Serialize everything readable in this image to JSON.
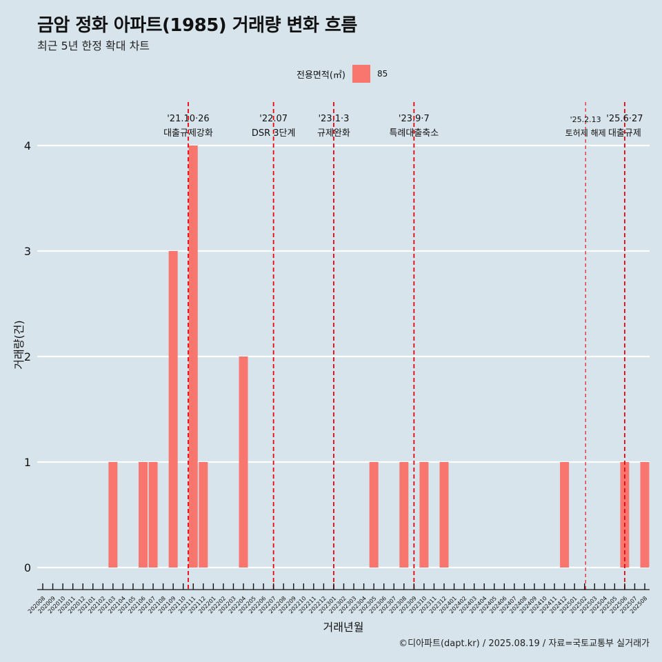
{
  "title": "금암 정화 아파트(1985) 거래량 변화 흐름",
  "subtitle": "최근 5년 한정 확대 차트",
  "caption": "©디아파트(dapt.kr) / 2025.08.19 / 자료=국토교통부 실거래가",
  "colors": {
    "background": "#d7e4ec",
    "bar": "#f8766d",
    "grid": "#ffffff",
    "event_line": "#e8000b"
  },
  "chart_data": {
    "type": "bar",
    "title": "금암 정화 아파트(1985) 거래량 변화 흐름",
    "subtitle": "최근 5년 한정 확대 차트",
    "xlabel": "거래년월",
    "ylabel": "거래량(건)",
    "ylim": [
      0,
      4
    ],
    "yticks": [
      0,
      1,
      2,
      3,
      4
    ],
    "grid": "horizontal major lines",
    "legend": {
      "title": "전용면적(㎡)",
      "placement": "top",
      "entries": [
        "85"
      ]
    },
    "categories": [
      "202008",
      "202009",
      "202010",
      "202011",
      "202012",
      "202101",
      "202102",
      "202103",
      "202104",
      "202105",
      "202106",
      "202107",
      "202108",
      "202109",
      "202110",
      "202111",
      "202112",
      "202201",
      "202202",
      "202203",
      "202204",
      "202205",
      "202206",
      "202207",
      "202208",
      "202209",
      "202210",
      "202211",
      "202212",
      "202301",
      "202302",
      "202303",
      "202304",
      "202305",
      "202306",
      "202307",
      "202308",
      "202309",
      "202310",
      "202311",
      "202312",
      "202401",
      "202402",
      "202403",
      "202404",
      "202405",
      "202406",
      "202407",
      "202408",
      "202409",
      "202410",
      "202411",
      "202412",
      "202501",
      "202502",
      "202503",
      "202504",
      "202505",
      "202506",
      "202507",
      "202508"
    ],
    "series": [
      {
        "name": "85",
        "values": [
          0,
          0,
          0,
          0,
          0,
          0,
          0,
          1,
          0,
          0,
          1,
          1,
          0,
          3,
          0,
          4,
          1,
          0,
          0,
          0,
          2,
          0,
          0,
          0,
          0,
          0,
          0,
          0,
          0,
          0,
          0,
          0,
          0,
          1,
          0,
          0,
          1,
          0,
          1,
          0,
          1,
          0,
          0,
          0,
          0,
          0,
          0,
          0,
          0,
          0,
          0,
          0,
          1,
          0,
          0,
          0,
          0,
          0,
          1,
          0,
          1
        ]
      }
    ],
    "events": [
      {
        "date_label": "'21.10·26",
        "text": "대출규제강화",
        "category": "202110",
        "offset": 0.5,
        "style": "bold"
      },
      {
        "date_label": "'22.07",
        "text": "DSR 3단계",
        "category": "202207",
        "offset": 0,
        "style": "bold"
      },
      {
        "date_label": "'23.1·3",
        "text": "규제완화",
        "category": "202301",
        "offset": 0,
        "style": "bold"
      },
      {
        "date_label": "'23.9·7",
        "text": "특례대출축소",
        "category": "202309",
        "offset": 0,
        "style": "bold"
      },
      {
        "date_label": "'25.2.13",
        "text": "토허제 해제",
        "category": "202502",
        "offset": 0.1,
        "style": "thin"
      },
      {
        "date_label": "'25.6·27",
        "text": "대출규제",
        "category": "202506",
        "offset": 0,
        "style": "bold"
      }
    ]
  }
}
